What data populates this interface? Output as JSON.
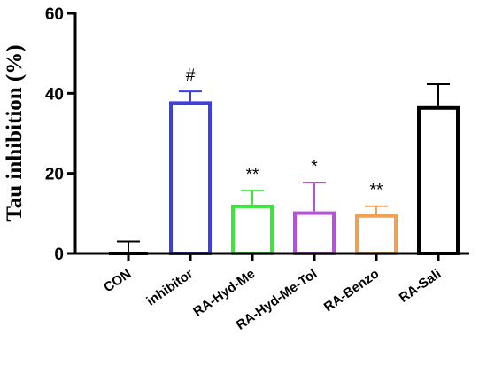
{
  "chart_data": {
    "type": "bar",
    "title": "",
    "xlabel": "",
    "ylabel": "Tau inhibition (%)",
    "ylim": [
      0,
      60
    ],
    "yticks": [
      0,
      20,
      40,
      60
    ],
    "grid": false,
    "categories": [
      "CON",
      "inhibitor",
      "RA-Hyd-Me",
      "RA-Hyd-Me-Tol",
      "RA-Benzo",
      "RA-Sali"
    ],
    "values": [
      0,
      38,
      12.2,
      10.5,
      9.8,
      36.8
    ],
    "errors": [
      3,
      2.5,
      3.5,
      7.2,
      2,
      5.5
    ],
    "annotations": [
      "",
      "#",
      "**",
      "*",
      "**",
      ""
    ],
    "colors": [
      "#000000",
      "#3b3fe0",
      "#39e639",
      "#b84fe0",
      "#f0a050",
      "#000000"
    ]
  }
}
